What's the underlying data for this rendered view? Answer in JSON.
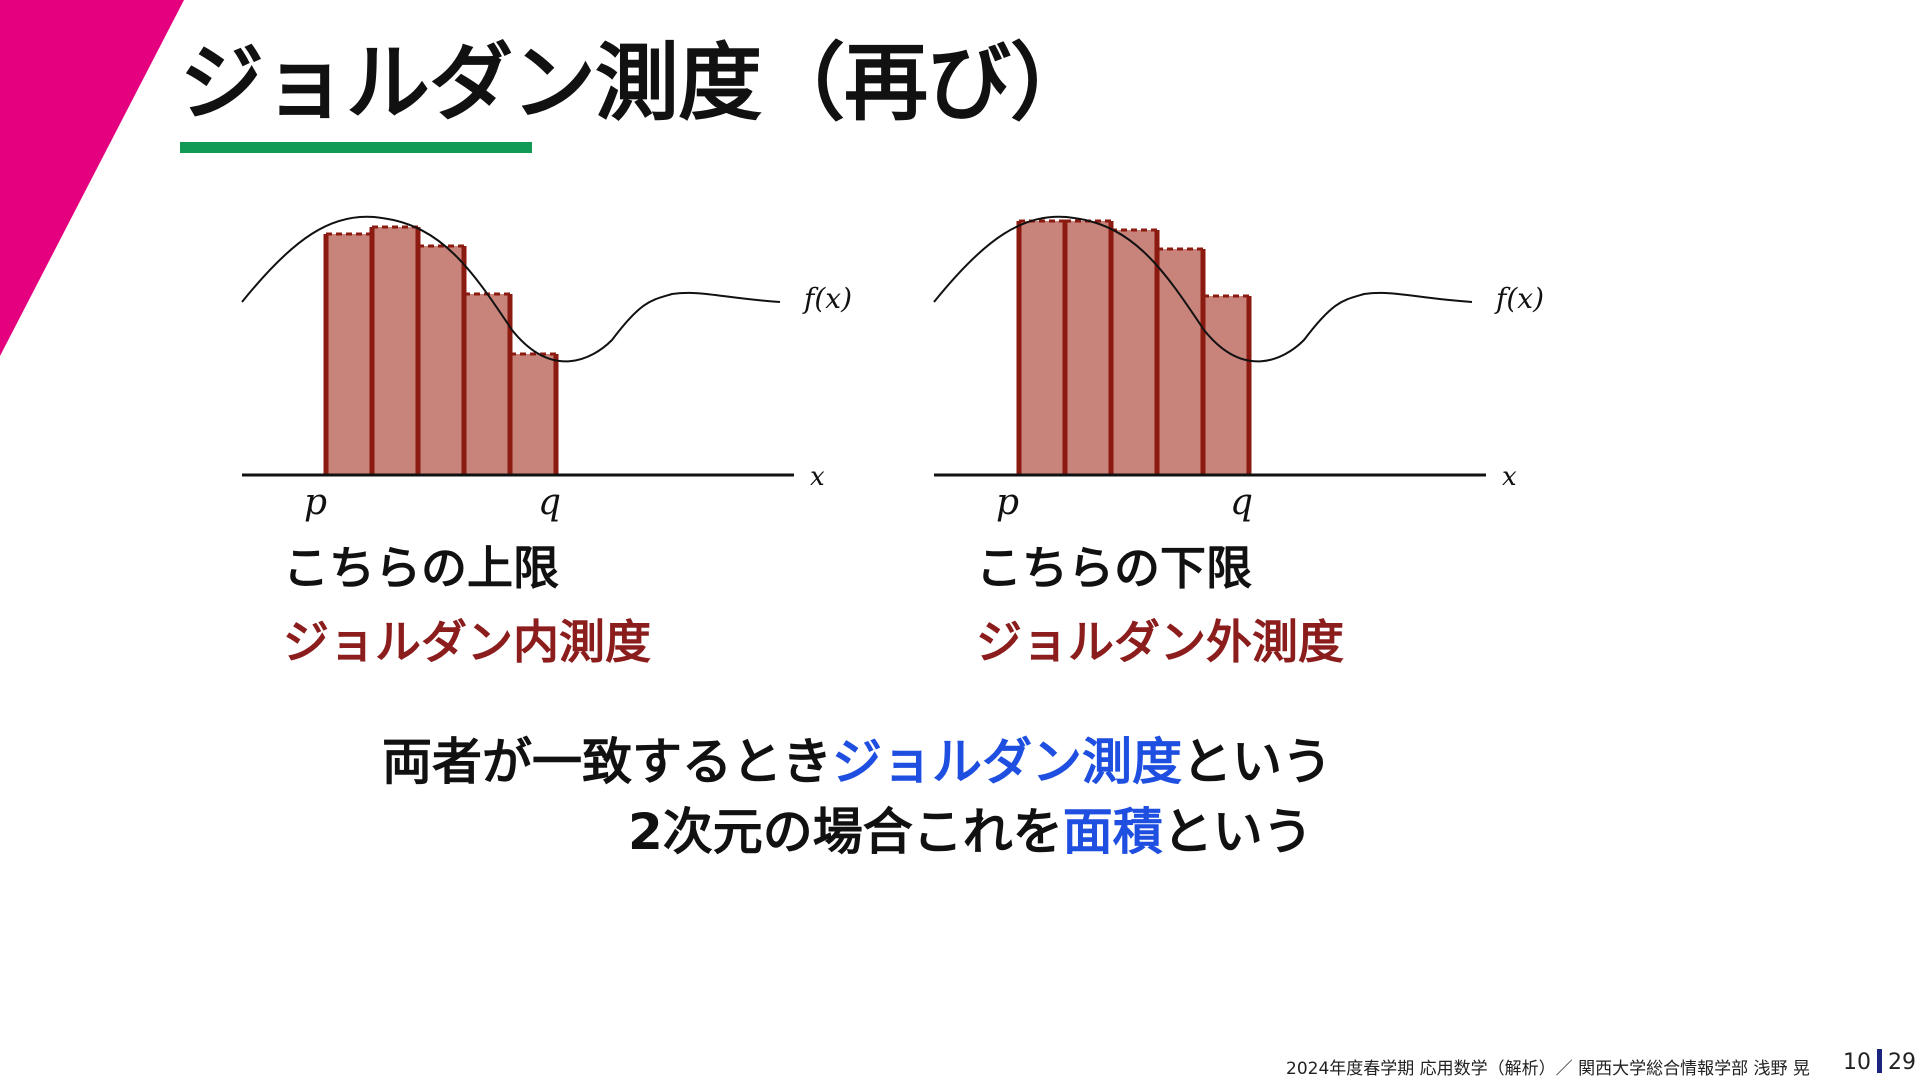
{
  "slide": {
    "title": "ジョルダン測度（再び）",
    "accent_color": "#e4007f",
    "underline_color": "#119a55"
  },
  "diagrams": {
    "left": {
      "curve_label": "f(x)",
      "axis_label": "x",
      "p_label": "p",
      "q_label": "q",
      "caption": "こちらの上限",
      "measure": "ジョルダン内測度"
    },
    "right": {
      "curve_label": "f(x)",
      "axis_label": "x",
      "p_label": "p",
      "q_label": "q",
      "caption": "こちらの下限",
      "measure": "ジョルダン外測度"
    },
    "bar_fill": "#c8837a",
    "bar_edge": "#8b1a10"
  },
  "statement": {
    "line1_pre": "両者が一致するとき",
    "line1_term": "ジョルダン測度",
    "line1_post": "という",
    "line2_pre": "2次元の場合これを",
    "line2_term": "面積",
    "line2_post": "という"
  },
  "footer": {
    "course": "2024年度春学期  応用数学（解析）／ 関西大学総合情報学部  浅野  晃",
    "page": "10",
    "total": "29"
  }
}
